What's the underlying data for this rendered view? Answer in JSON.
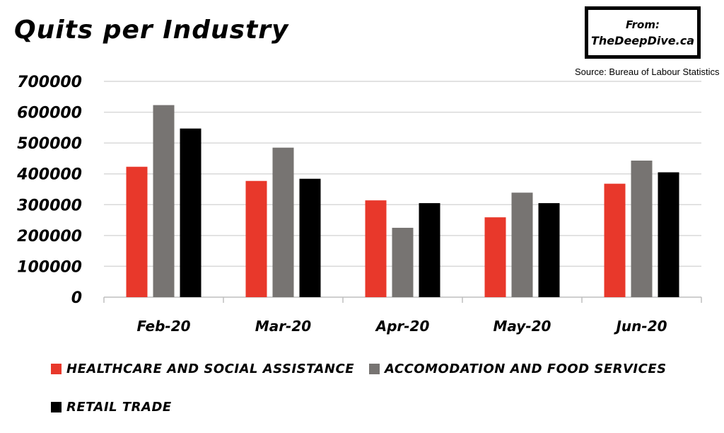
{
  "header": {
    "title": "Quits per Industry",
    "brand_line1": "From:",
    "brand_line2": "TheDeepDive.ca",
    "source": "Source: Bureau of Labour Statistics"
  },
  "chart_data": {
    "type": "bar",
    "title": "Quits per Industry",
    "categories": [
      "Feb-20",
      "Mar-20",
      "Apr-20",
      "May-20",
      "Jun-20"
    ],
    "ylim": [
      0,
      700000
    ],
    "yticks": [
      0,
      100000,
      200000,
      300000,
      400000,
      500000,
      600000,
      700000
    ],
    "ytick_labels": [
      "0",
      "100000",
      "200000",
      "300000",
      "400000",
      "500000",
      "600000",
      "700000"
    ],
    "grid": true,
    "legend_position": "bottom",
    "series": [
      {
        "name": "HEALTHCARE AND SOCIAL ASSISTANCE",
        "color": "#e8382b",
        "values": [
          423000,
          377000,
          314000,
          259000,
          368000
        ]
      },
      {
        "name": "ACCOMODATION AND FOOD SERVICES",
        "color": "#777472",
        "values": [
          623000,
          485000,
          225000,
          339000,
          443000
        ]
      },
      {
        "name": "RETAIL TRADE",
        "color": "#000000",
        "values": [
          547000,
          384000,
          305000,
          305000,
          405000
        ]
      }
    ]
  }
}
